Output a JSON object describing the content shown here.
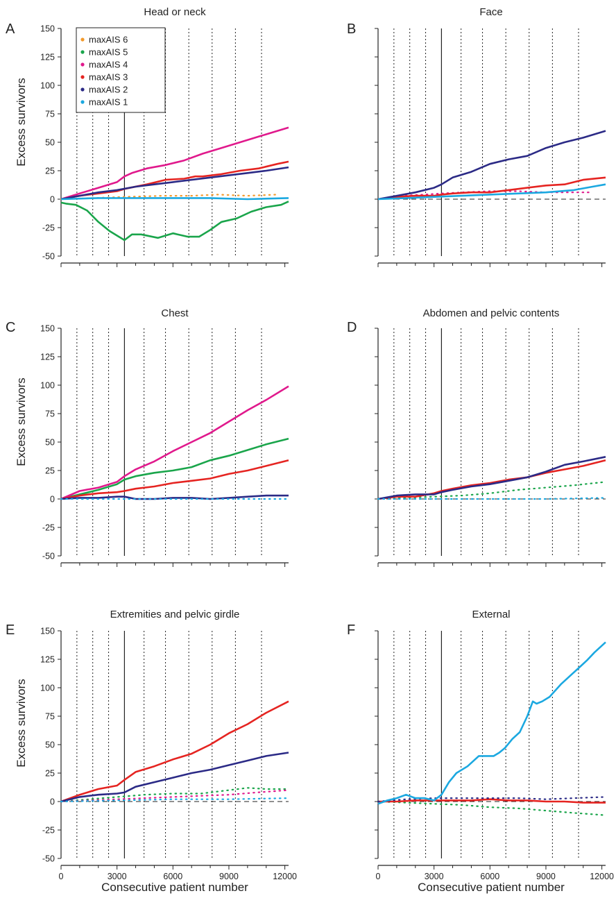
{
  "figure": {
    "xlabel": "Consecutive patient number",
    "ylabel": "Excess survivors",
    "legend": {
      "placement": "top-left of panel A",
      "entries": [
        {
          "name": "maxAIS 6",
          "color": "#f39a2b"
        },
        {
          "name": "maxAIS 5",
          "color": "#1aa54b"
        },
        {
          "name": "maxAIS 4",
          "color": "#e0198c"
        },
        {
          "name": "maxAIS 3",
          "color": "#e52421"
        },
        {
          "name": "maxAIS 2",
          "color": "#2b2a86"
        },
        {
          "name": "maxAIS 1",
          "color": "#1ba8e0"
        }
      ]
    }
  },
  "chart_data": [
    {
      "panel": "A",
      "type": "line",
      "title": "Head or neck",
      "xlabel": "",
      "ylabel": "Excess survivors",
      "xlim": [
        0,
        12200
      ],
      "ylim": [
        -50,
        150
      ],
      "xticks": [],
      "yticks": [
        -50,
        -25,
        0,
        25,
        50,
        75,
        100,
        125,
        150
      ],
      "vlines_dotted": [
        850,
        1700,
        2550,
        4450,
        5600,
        6850,
        8100,
        9350,
        10750
      ],
      "vline_solid": 3400,
      "zero_dashed": false,
      "series": [
        {
          "name": "maxAIS 6",
          "style": "dotted",
          "x": [
            0,
            3400,
            5500,
            7000,
            8400,
            10000,
            11600
          ],
          "y": [
            0,
            2,
            3,
            3,
            4,
            3,
            4
          ]
        },
        {
          "name": "maxAIS 5",
          "style": "solid",
          "x": [
            0,
            300,
            800,
            1400,
            2000,
            2600,
            3000,
            3400,
            3800,
            4300,
            5200,
            6000,
            6800,
            7400,
            8000,
            8600,
            9400,
            10200,
            11000,
            11800,
            12200
          ],
          "y": [
            -3,
            -4,
            -5,
            -10,
            -20,
            -28,
            -32,
            -36,
            -31,
            -31,
            -34,
            -30,
            -33,
            -33,
            -27,
            -20,
            -17,
            -11,
            -7,
            -5,
            -2
          ]
        },
        {
          "name": "maxAIS 4",
          "style": "solid",
          "x": [
            0,
            1000,
            2000,
            3000,
            3400,
            3800,
            4600,
            5600,
            6600,
            7600,
            8600,
            9600,
            10600,
            11600,
            12200
          ],
          "y": [
            0,
            5,
            10,
            15,
            20,
            23,
            27,
            30,
            34,
            40,
            45,
            50,
            55,
            60,
            63
          ]
        },
        {
          "name": "maxAIS 3",
          "style": "solid",
          "x": [
            0,
            1000,
            2000,
            3000,
            3400,
            4600,
            5600,
            6600,
            7200,
            7600,
            8600,
            9600,
            10600,
            11600,
            12200
          ],
          "y": [
            0,
            3,
            5,
            7,
            9,
            13,
            17,
            18,
            20,
            20,
            22,
            25,
            27,
            31,
            33
          ]
        },
        {
          "name": "maxAIS 2",
          "style": "solid",
          "x": [
            0,
            1000,
            2000,
            3000,
            4000,
            5000,
            6000,
            7000,
            8000,
            9000,
            10000,
            11000,
            12200
          ],
          "y": [
            0,
            3,
            6,
            8,
            11,
            13,
            15,
            17,
            19,
            21,
            23,
            25,
            28
          ]
        },
        {
          "name": "maxAIS 1",
          "style": "solid",
          "x": [
            0,
            2000,
            4000,
            6000,
            8000,
            10000,
            12200
          ],
          "y": [
            0,
            1,
            1,
            1,
            1,
            0,
            1
          ]
        }
      ]
    },
    {
      "panel": "B",
      "type": "line",
      "title": "Face",
      "xlabel": "",
      "ylabel": "",
      "xlim": [
        0,
        12200
      ],
      "ylim": [
        -50,
        150
      ],
      "xticks": [],
      "yticks": [],
      "vlines_dotted": [
        850,
        1700,
        2550,
        4450,
        5600,
        6850,
        8100,
        9350,
        10750
      ],
      "vline_solid": 3400,
      "zero_dashed": true,
      "series": [
        {
          "name": "maxAIS 4",
          "style": "dotted",
          "x": [
            1200,
            2500,
            3400,
            4500,
            6000,
            7500,
            9000,
            10500,
            11500
          ],
          "y": [
            3,
            4,
            5,
            6,
            7,
            7,
            6,
            6,
            6
          ]
        },
        {
          "name": "maxAIS 3",
          "style": "solid",
          "x": [
            0,
            1000,
            2000,
            3000,
            3400,
            4000,
            5000,
            6000,
            7000,
            8000,
            9000,
            10000,
            11000,
            12200
          ],
          "y": [
            0,
            2,
            3,
            3,
            4,
            5,
            6,
            6,
            8,
            10,
            12,
            13,
            17,
            19
          ]
        },
        {
          "name": "maxAIS 2",
          "style": "solid",
          "x": [
            0,
            1000,
            2000,
            3000,
            3400,
            4000,
            5000,
            6000,
            7000,
            8000,
            9000,
            10000,
            11000,
            12200
          ],
          "y": [
            0,
            3,
            6,
            10,
            13,
            19,
            24,
            31,
            35,
            38,
            45,
            50,
            54,
            60
          ]
        },
        {
          "name": "maxAIS 1",
          "style": "solid",
          "x": [
            0,
            1500,
            3000,
            4500,
            6000,
            7500,
            9000,
            10500,
            11500,
            12200
          ],
          "y": [
            0,
            1,
            2,
            3,
            4,
            5,
            6,
            8,
            11,
            13
          ]
        }
      ]
    },
    {
      "panel": "C",
      "type": "line",
      "title": "Chest",
      "xlabel": "",
      "ylabel": "Excess survivors",
      "xlim": [
        0,
        12200
      ],
      "ylim": [
        -50,
        150
      ],
      "xticks": [],
      "yticks": [
        -50,
        -25,
        0,
        25,
        50,
        75,
        100,
        125,
        150
      ],
      "vlines_dotted": [
        850,
        1700,
        2550,
        4450,
        5600,
        6850,
        8100,
        9350,
        10750
      ],
      "vline_solid": 3400,
      "zero_dashed": false,
      "series": [
        {
          "name": "maxAIS 5",
          "style": "solid",
          "x": [
            0,
            1000,
            2000,
            3000,
            3400,
            4000,
            5000,
            6000,
            7000,
            8000,
            9000,
            10000,
            11000,
            12200
          ],
          "y": [
            0,
            4,
            8,
            13,
            17,
            20,
            23,
            25,
            28,
            34,
            38,
            43,
            48,
            53
          ]
        },
        {
          "name": "maxAIS 4",
          "style": "solid",
          "x": [
            0,
            1000,
            2000,
            3000,
            3400,
            4000,
            5000,
            6000,
            7000,
            8000,
            9000,
            10000,
            11000,
            12200
          ],
          "y": [
            0,
            7,
            10,
            15,
            20,
            26,
            33,
            42,
            50,
            58,
            68,
            78,
            87,
            99
          ]
        },
        {
          "name": "maxAIS 3",
          "style": "solid",
          "x": [
            0,
            1000,
            2000,
            3000,
            3400,
            4000,
            5000,
            6000,
            7000,
            8000,
            9000,
            10000,
            11000,
            12200
          ],
          "y": [
            0,
            3,
            5,
            6,
            7,
            9,
            11,
            14,
            16,
            18,
            22,
            25,
            29,
            34
          ]
        },
        {
          "name": "maxAIS 2",
          "style": "solid",
          "x": [
            0,
            1000,
            2000,
            3000,
            3400,
            4000,
            5000,
            6000,
            7000,
            8000,
            9000,
            10000,
            11000,
            12200
          ],
          "y": [
            0,
            1,
            1,
            2,
            2,
            0,
            0,
            1,
            1,
            0,
            1,
            2,
            3,
            3
          ]
        },
        {
          "name": "maxAIS 1",
          "style": "dotted",
          "x": [
            0,
            3000,
            6000,
            9000,
            12200
          ],
          "y": [
            0,
            0,
            0,
            0,
            0
          ]
        }
      ]
    },
    {
      "panel": "D",
      "type": "line",
      "title": "Abdomen and pelvic contents",
      "xlabel": "",
      "ylabel": "",
      "xlim": [
        0,
        12200
      ],
      "ylim": [
        -50,
        150
      ],
      "xticks": [],
      "yticks": [],
      "vlines_dotted": [
        850,
        1700,
        2550,
        4450,
        5600,
        6850,
        8100,
        9350,
        10750
      ],
      "vline_solid": 3400,
      "zero_dashed": true,
      "series": [
        {
          "name": "maxAIS 5",
          "style": "dotted",
          "x": [
            0,
            1500,
            3000,
            4500,
            6000,
            7500,
            9000,
            10500,
            12200
          ],
          "y": [
            0,
            1,
            2,
            3,
            5,
            8,
            10,
            12,
            15
          ]
        },
        {
          "name": "maxAIS 3",
          "style": "solid",
          "x": [
            0,
            1000,
            2000,
            3000,
            3400,
            4000,
            5000,
            6000,
            7000,
            8000,
            9000,
            10000,
            11000,
            12200
          ],
          "y": [
            0,
            2,
            2,
            5,
            7,
            9,
            12,
            14,
            17,
            19,
            23,
            26,
            29,
            34
          ]
        },
        {
          "name": "maxAIS 2",
          "style": "solid",
          "x": [
            0,
            1000,
            2000,
            3000,
            3400,
            4000,
            5000,
            6000,
            7000,
            8000,
            9000,
            10000,
            11000,
            12200
          ],
          "y": [
            0,
            3,
            4,
            4,
            6,
            8,
            11,
            13,
            16,
            19,
            24,
            30,
            33,
            37
          ]
        },
        {
          "name": "maxAIS 1",
          "style": "dotted",
          "x": [
            0,
            3000,
            6000,
            9000,
            12200
          ],
          "y": [
            0,
            0,
            0,
            0,
            1
          ]
        }
      ]
    },
    {
      "panel": "E",
      "type": "line",
      "title": "Extremities and pelvic girdle",
      "xlabel": "Consecutive patient number",
      "ylabel": "Excess survivors",
      "xlim": [
        0,
        12200
      ],
      "ylim": [
        -50,
        150
      ],
      "xticks": [
        0,
        3000,
        6000,
        9000,
        12000
      ],
      "yticks": [
        -50,
        -25,
        0,
        25,
        50,
        75,
        100,
        125,
        150
      ],
      "vlines_dotted": [
        850,
        1700,
        2550,
        4450,
        5600,
        6850,
        8100,
        9350,
        10750
      ],
      "vline_solid": 3400,
      "zero_dashed": true,
      "series": [
        {
          "name": "maxAIS 5",
          "style": "dotted",
          "x": [
            0,
            1500,
            3000,
            4500,
            6000,
            7500,
            9000,
            10000,
            11000,
            12200
          ],
          "y": [
            0,
            2,
            4,
            6,
            7,
            7,
            10,
            12,
            11,
            11
          ]
        },
        {
          "name": "maxAIS 4",
          "style": "dotted",
          "x": [
            0,
            1500,
            3000,
            4500,
            6000,
            7500,
            9000,
            10500,
            12200
          ],
          "y": [
            0,
            1,
            2,
            3,
            4,
            5,
            6,
            8,
            10
          ]
        },
        {
          "name": "maxAIS 3",
          "style": "solid",
          "x": [
            0,
            1000,
            2000,
            3000,
            3400,
            4000,
            5000,
            6000,
            7000,
            8000,
            9000,
            10000,
            11000,
            12200
          ],
          "y": [
            0,
            6,
            11,
            14,
            19,
            26,
            31,
            37,
            42,
            50,
            60,
            68,
            78,
            88
          ]
        },
        {
          "name": "maxAIS 2",
          "style": "solid",
          "x": [
            0,
            1000,
            2000,
            3000,
            3400,
            4000,
            5000,
            6000,
            7000,
            8000,
            9000,
            10000,
            11000,
            12200
          ],
          "y": [
            0,
            4,
            6,
            7,
            8,
            13,
            17,
            21,
            25,
            28,
            32,
            36,
            40,
            43
          ]
        },
        {
          "name": "maxAIS 1",
          "style": "dotted",
          "x": [
            0,
            3000,
            6000,
            9000,
            12200
          ],
          "y": [
            0,
            1,
            2,
            2,
            3
          ]
        }
      ]
    },
    {
      "panel": "F",
      "type": "line",
      "title": "External",
      "xlabel": "Consecutive patient number",
      "ylabel": "",
      "xlim": [
        0,
        12200
      ],
      "ylim": [
        -50,
        150
      ],
      "xticks": [
        0,
        3000,
        6000,
        9000,
        12000
      ],
      "yticks": [],
      "vlines_dotted": [
        850,
        1700,
        2550,
        4450,
        5600,
        6850,
        8100,
        9350,
        10750
      ],
      "vline_solid": 3400,
      "zero_dashed": true,
      "series": [
        {
          "name": "maxAIS 5",
          "style": "dotted",
          "x": [
            0,
            1500,
            3000,
            4500,
            6000,
            7500,
            9000,
            10500,
            12200
          ],
          "y": [
            0,
            -1,
            -2,
            -3,
            -5,
            -6,
            -8,
            -10,
            -12
          ]
        },
        {
          "name": "maxAIS 3",
          "style": "solid",
          "x": [
            0,
            1000,
            2000,
            3000,
            4000,
            5000,
            6000,
            7000,
            8000,
            9000,
            10000,
            11000,
            12200
          ],
          "y": [
            0,
            0,
            1,
            1,
            1,
            1,
            2,
            1,
            1,
            0,
            0,
            -1,
            -1
          ]
        },
        {
          "name": "maxAIS 2",
          "style": "dotted",
          "x": [
            0,
            1500,
            3000,
            4500,
            6000,
            7500,
            9000,
            10500,
            12200
          ],
          "y": [
            0,
            2,
            3,
            3,
            3,
            3,
            2,
            3,
            4
          ]
        },
        {
          "name": "maxAIS 1",
          "style": "solid",
          "x": [
            0,
            500,
            1000,
            1500,
            2000,
            2500,
            3000,
            3400,
            3800,
            4200,
            4800,
            5400,
            5900,
            6200,
            6500,
            6800,
            7200,
            7600,
            8000,
            8300,
            8500,
            8800,
            9200,
            9800,
            10400,
            10800,
            11200,
            11600,
            12200
          ],
          "y": [
            -2,
            1,
            3,
            6,
            3,
            3,
            1,
            6,
            17,
            25,
            31,
            40,
            40,
            40,
            43,
            47,
            55,
            61,
            75,
            88,
            86,
            88,
            92,
            103,
            112,
            118,
            124,
            131,
            140
          ]
        }
      ]
    }
  ]
}
